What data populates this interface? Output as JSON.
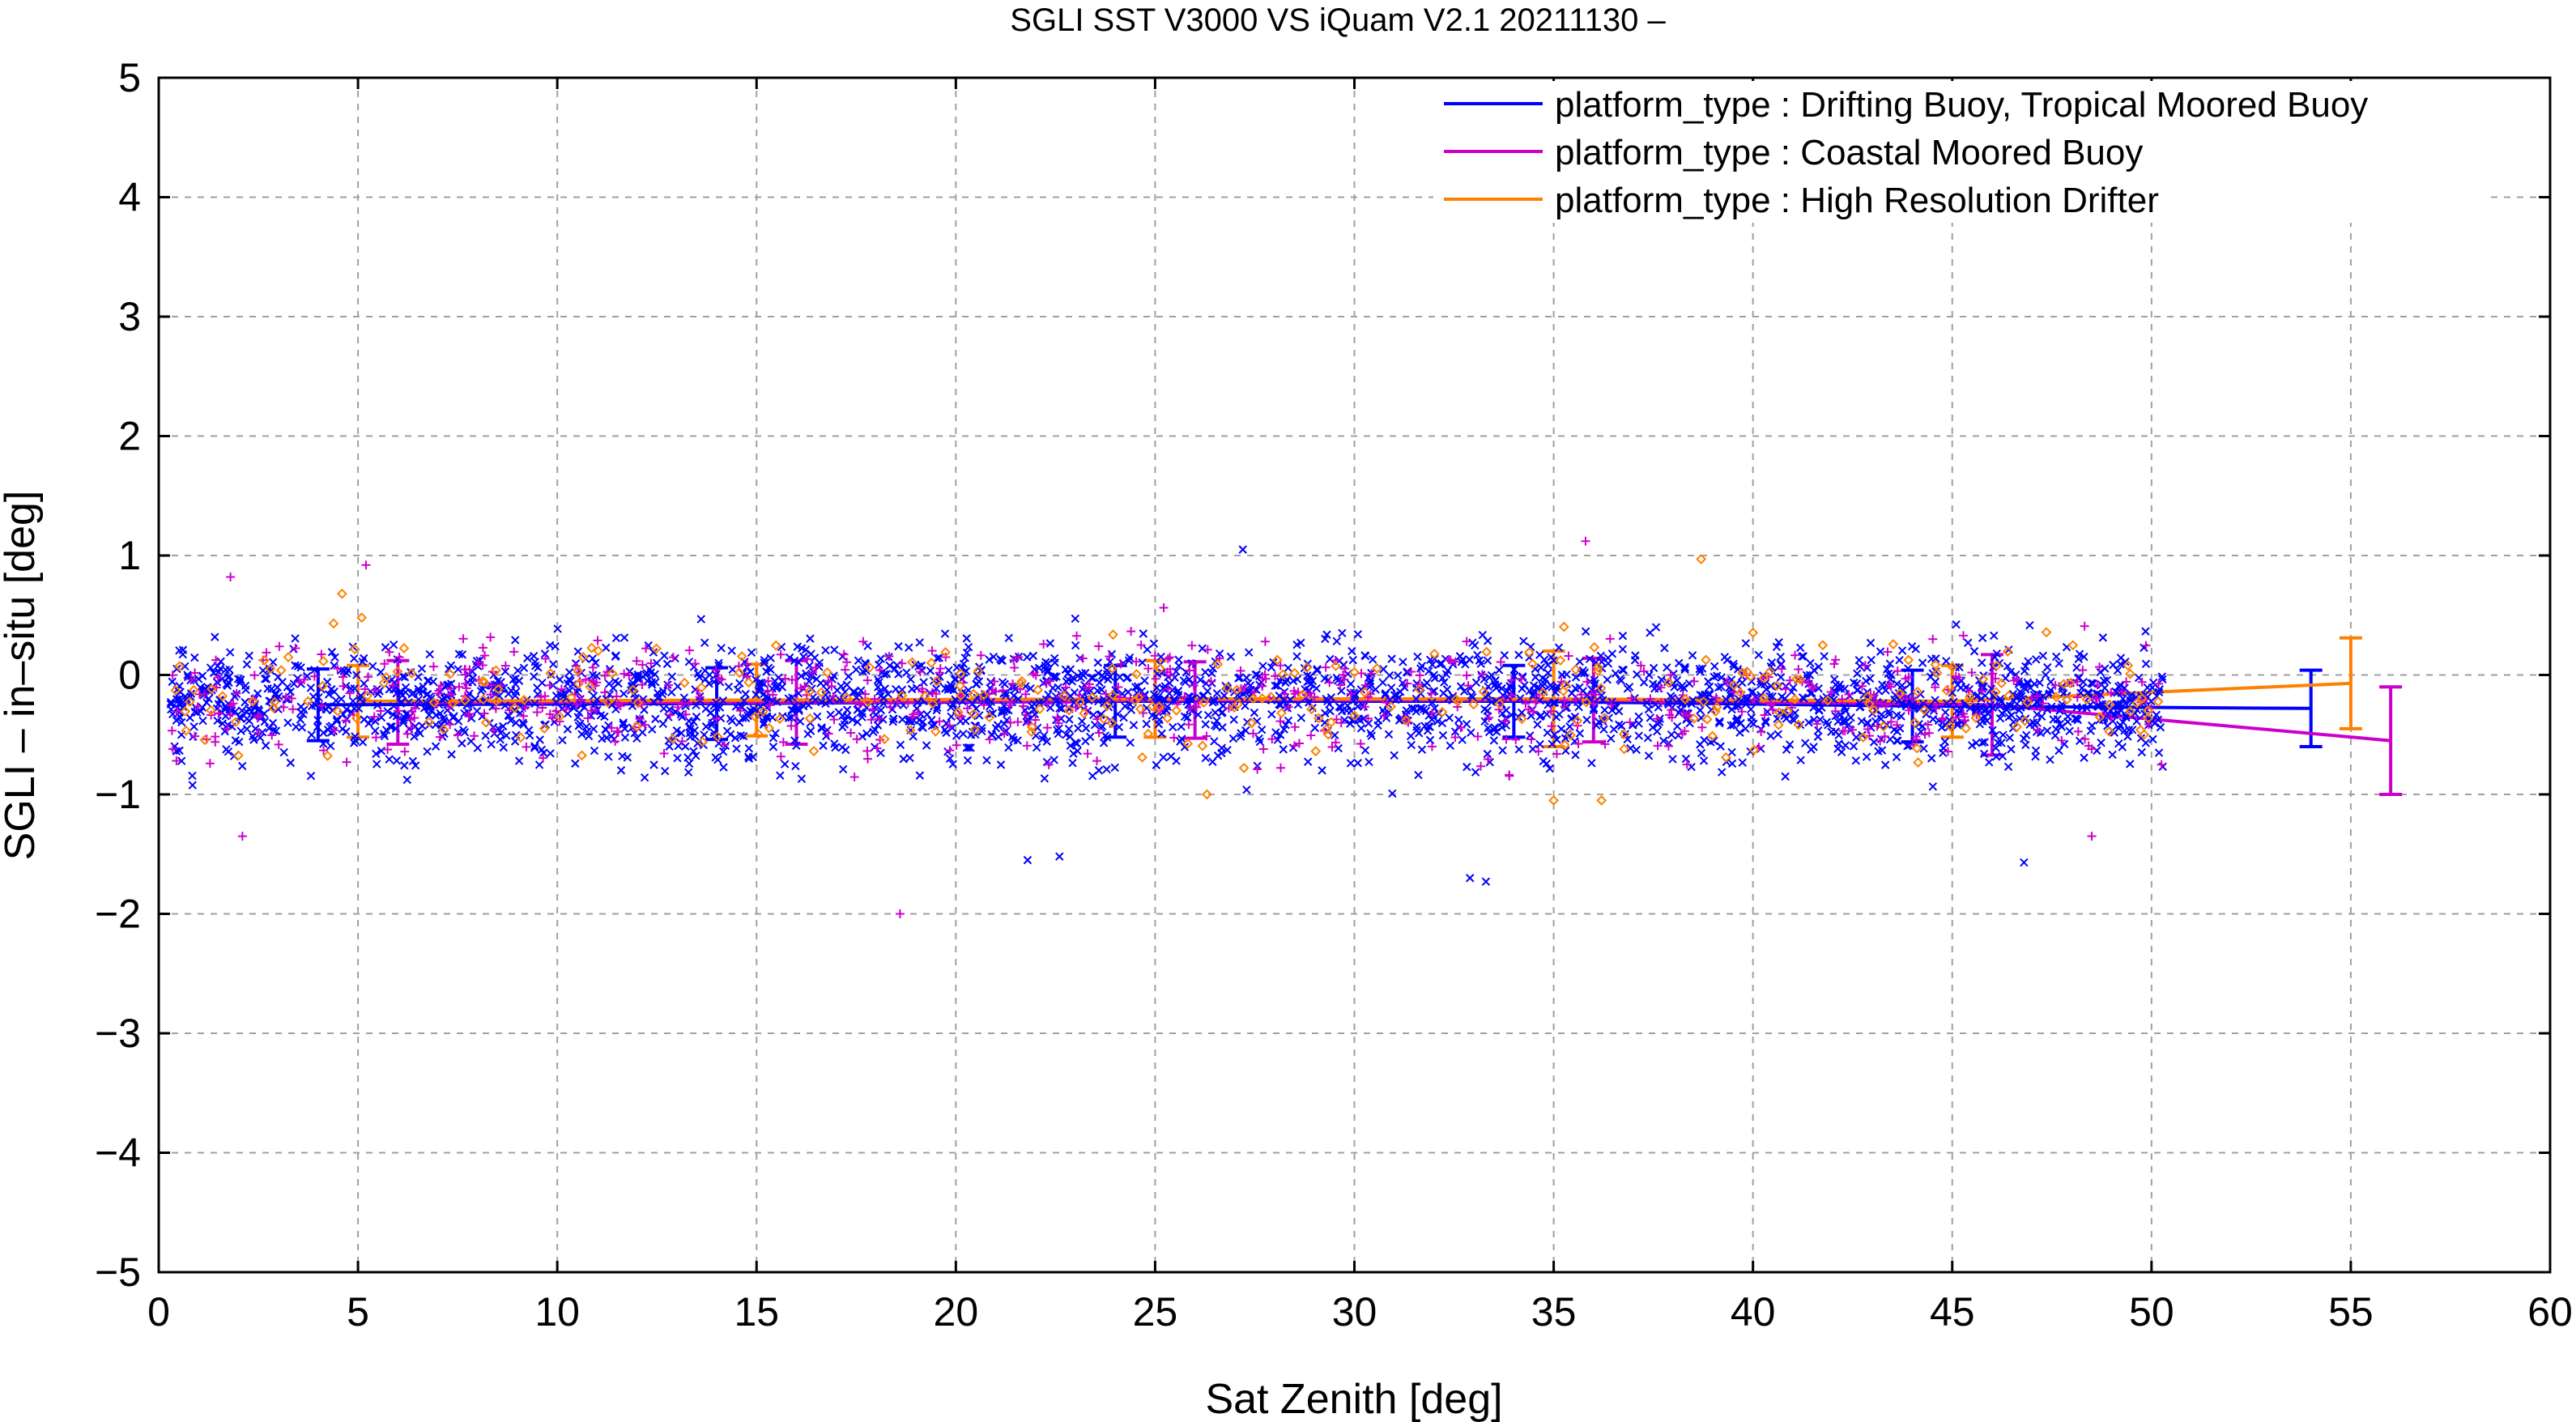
{
  "chart_data": {
    "type": "scatter",
    "title": "SGLI SST V3000 VS iQuam V2.1 20211130 –",
    "xlabel": "Sat Zenith [deg]",
    "ylabel": "SGLI – in–situ [deg]",
    "xlim": [
      0,
      60
    ],
    "ylim": [
      -5,
      5
    ],
    "xticks": [
      0,
      5,
      10,
      15,
      20,
      25,
      30,
      35,
      40,
      45,
      50,
      55,
      60
    ],
    "yticks": [
      5,
      4,
      3,
      2,
      1,
      0,
      -1,
      -2,
      -3,
      -4,
      -5
    ],
    "xtick_labels": [
      "0",
      "5",
      "10",
      "15",
      "20",
      "25",
      "30",
      "35",
      "40",
      "45",
      "50",
      "55",
      "60"
    ],
    "ytick_labels": [
      "5",
      "4",
      "3",
      "2",
      "1",
      "0",
      "−1",
      "−2",
      "−3",
      "−4",
      "−5"
    ],
    "grid": true,
    "legend_position": "top-right",
    "series": [
      {
        "name": "platform_type : Drifting Buoy, Tropical Moored Buoy",
        "color": "#0000ff",
        "marker": "x",
        "mean_x": [
          4,
          14,
          24,
          34,
          44,
          54
        ],
        "mean_y": [
          -0.25,
          -0.24,
          -0.22,
          -0.22,
          -0.26,
          -0.28
        ],
        "std": [
          0.3,
          0.3,
          0.3,
          0.3,
          0.3,
          0.32
        ],
        "scatter": {
          "count": 2600,
          "x_range": [
            0.3,
            50.3
          ],
          "mean": -0.22,
          "spread": 0.36,
          "outliers": [
            [
              27.2,
              1.05
            ],
            [
              32.9,
              -1.7
            ],
            [
              33.3,
              -1.73
            ],
            [
              46.8,
              -1.57
            ],
            [
              21.8,
              -1.55
            ],
            [
              22.6,
              -1.52
            ]
          ]
        }
      },
      {
        "name": "platform_type : Coastal Moored Buoy",
        "color": "#cc00cc",
        "marker": "+",
        "mean_x": [
          6,
          16,
          26,
          36,
          46,
          56
        ],
        "mean_y": [
          -0.23,
          -0.23,
          -0.21,
          -0.21,
          -0.25,
          -0.55
        ],
        "std": [
          0.35,
          0.35,
          0.32,
          0.35,
          0.42,
          0.45
        ],
        "scatter": {
          "count": 600,
          "x_range": [
            0.3,
            50.3
          ],
          "mean": -0.2,
          "spread": 0.36,
          "outliers": [
            [
              1.8,
              0.82
            ],
            [
              2.1,
              -1.35
            ],
            [
              5.2,
              0.92
            ],
            [
              18.6,
              -2.0
            ],
            [
              35.8,
              1.12
            ],
            [
              48.5,
              -1.35
            ]
          ]
        }
      },
      {
        "name": "platform_type : High Resolution Drifter",
        "color": "#ff8000",
        "marker": "diamond",
        "mean_x": [
          5,
          15,
          25,
          35,
          45,
          55
        ],
        "mean_y": [
          -0.22,
          -0.21,
          -0.2,
          -0.2,
          -0.22,
          -0.07
        ],
        "std": [
          0.3,
          0.3,
          0.32,
          0.4,
          0.3,
          0.38
        ],
        "scatter": {
          "count": 280,
          "x_range": [
            0.3,
            50.3
          ],
          "mean": -0.18,
          "spread": 0.34,
          "outliers": [
            [
              4.6,
              0.68
            ],
            [
              26.3,
              -1.0
            ],
            [
              35.0,
              -1.05
            ],
            [
              36.2,
              -1.05
            ],
            [
              38.7,
              0.97
            ]
          ]
        }
      }
    ]
  }
}
